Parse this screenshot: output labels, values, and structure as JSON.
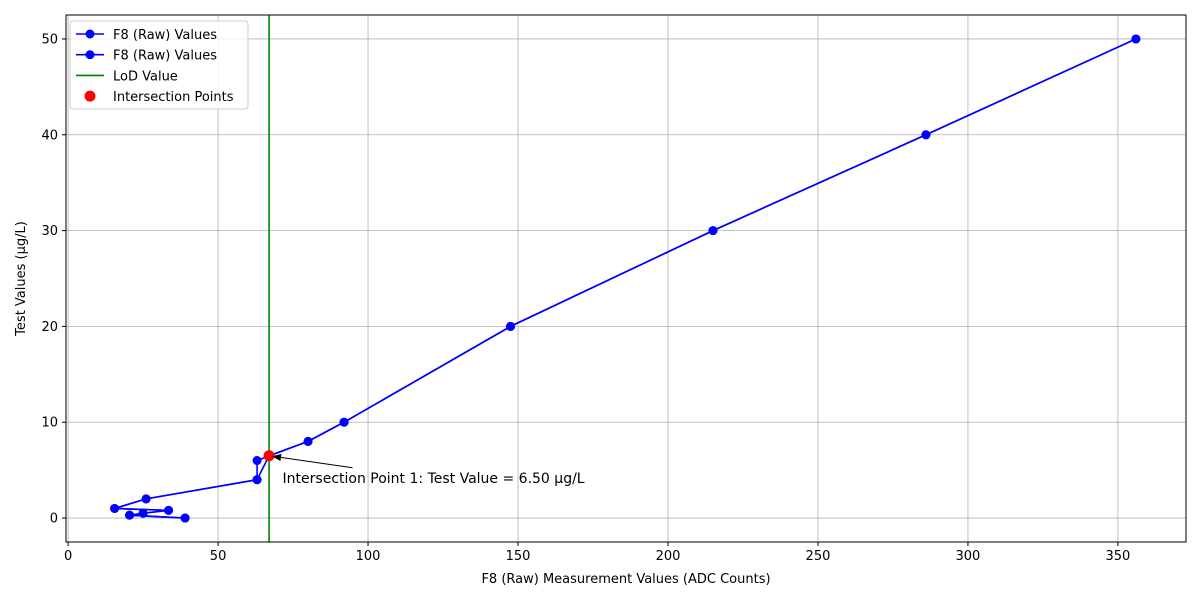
{
  "chart_data": {
    "type": "line",
    "title": "",
    "xlabel": "F8 (Raw) Measurement Values (ADC Counts)",
    "ylabel": "Test Values (µg/L)",
    "xlim": [
      -0.7,
      372.7
    ],
    "ylim": [
      -2.5,
      52.5
    ],
    "xticks": [
      0,
      50,
      100,
      150,
      200,
      250,
      300,
      350
    ],
    "yticks": [
      0,
      10,
      20,
      30,
      40,
      50
    ],
    "xtick_labels": [
      "0",
      "50",
      "100",
      "150",
      "200",
      "250",
      "300",
      "350"
    ],
    "ytick_labels": [
      "0",
      "10",
      "20",
      "30",
      "40",
      "50"
    ],
    "grid": true,
    "legend_position": "top-left",
    "series": [
      {
        "name": "F8 (Raw) Values",
        "color": "#0000ff",
        "points": [
          {
            "x": 356,
            "y": 50
          },
          {
            "x": 286,
            "y": 40
          },
          {
            "x": 215,
            "y": 30
          },
          {
            "x": 147.5,
            "y": 20
          },
          {
            "x": 92,
            "y": 10
          },
          {
            "x": 80,
            "y": 8
          },
          {
            "x": 63,
            "y": 6
          },
          {
            "x": 63,
            "y": 4
          },
          {
            "x": 26,
            "y": 2
          },
          {
            "x": 15.5,
            "y": 1
          },
          {
            "x": 33.5,
            "y": 0.8
          },
          {
            "x": 25,
            "y": 0.5
          },
          {
            "x": 20.5,
            "y": 0.3
          },
          {
            "x": 39,
            "y": 0
          }
        ]
      },
      {
        "name": "F8 (Raw) Values",
        "color": "#0000ff",
        "points": [
          {
            "x": 356,
            "y": 50
          },
          {
            "x": 286,
            "y": 40
          },
          {
            "x": 215,
            "y": 30
          },
          {
            "x": 147.5,
            "y": 20
          },
          {
            "x": 92,
            "y": 10
          },
          {
            "x": 80,
            "y": 8
          },
          {
            "x": 67,
            "y": 6.5
          },
          {
            "x": 63,
            "y": 4
          },
          {
            "x": 26,
            "y": 2
          },
          {
            "x": 15.5,
            "y": 1
          },
          {
            "x": 33.5,
            "y": 0.8
          },
          {
            "x": 25,
            "y": 0.5
          },
          {
            "x": 20.5,
            "y": 0.3
          },
          {
            "x": 39,
            "y": 0
          }
        ]
      }
    ],
    "lod": {
      "name": "LoD Value",
      "x": 67,
      "color": "#008000"
    },
    "intersection": {
      "name": "Intersection Points",
      "color": "#ff0000",
      "points": [
        {
          "x": 67,
          "y": 6.5
        }
      ]
    },
    "annotation": {
      "text": "Intersection Point 1: Test Value = 6.50 µg/L",
      "point": {
        "x": 67,
        "y": 6.5
      },
      "text_at": {
        "x": 71.5,
        "y": 4.2
      }
    }
  }
}
